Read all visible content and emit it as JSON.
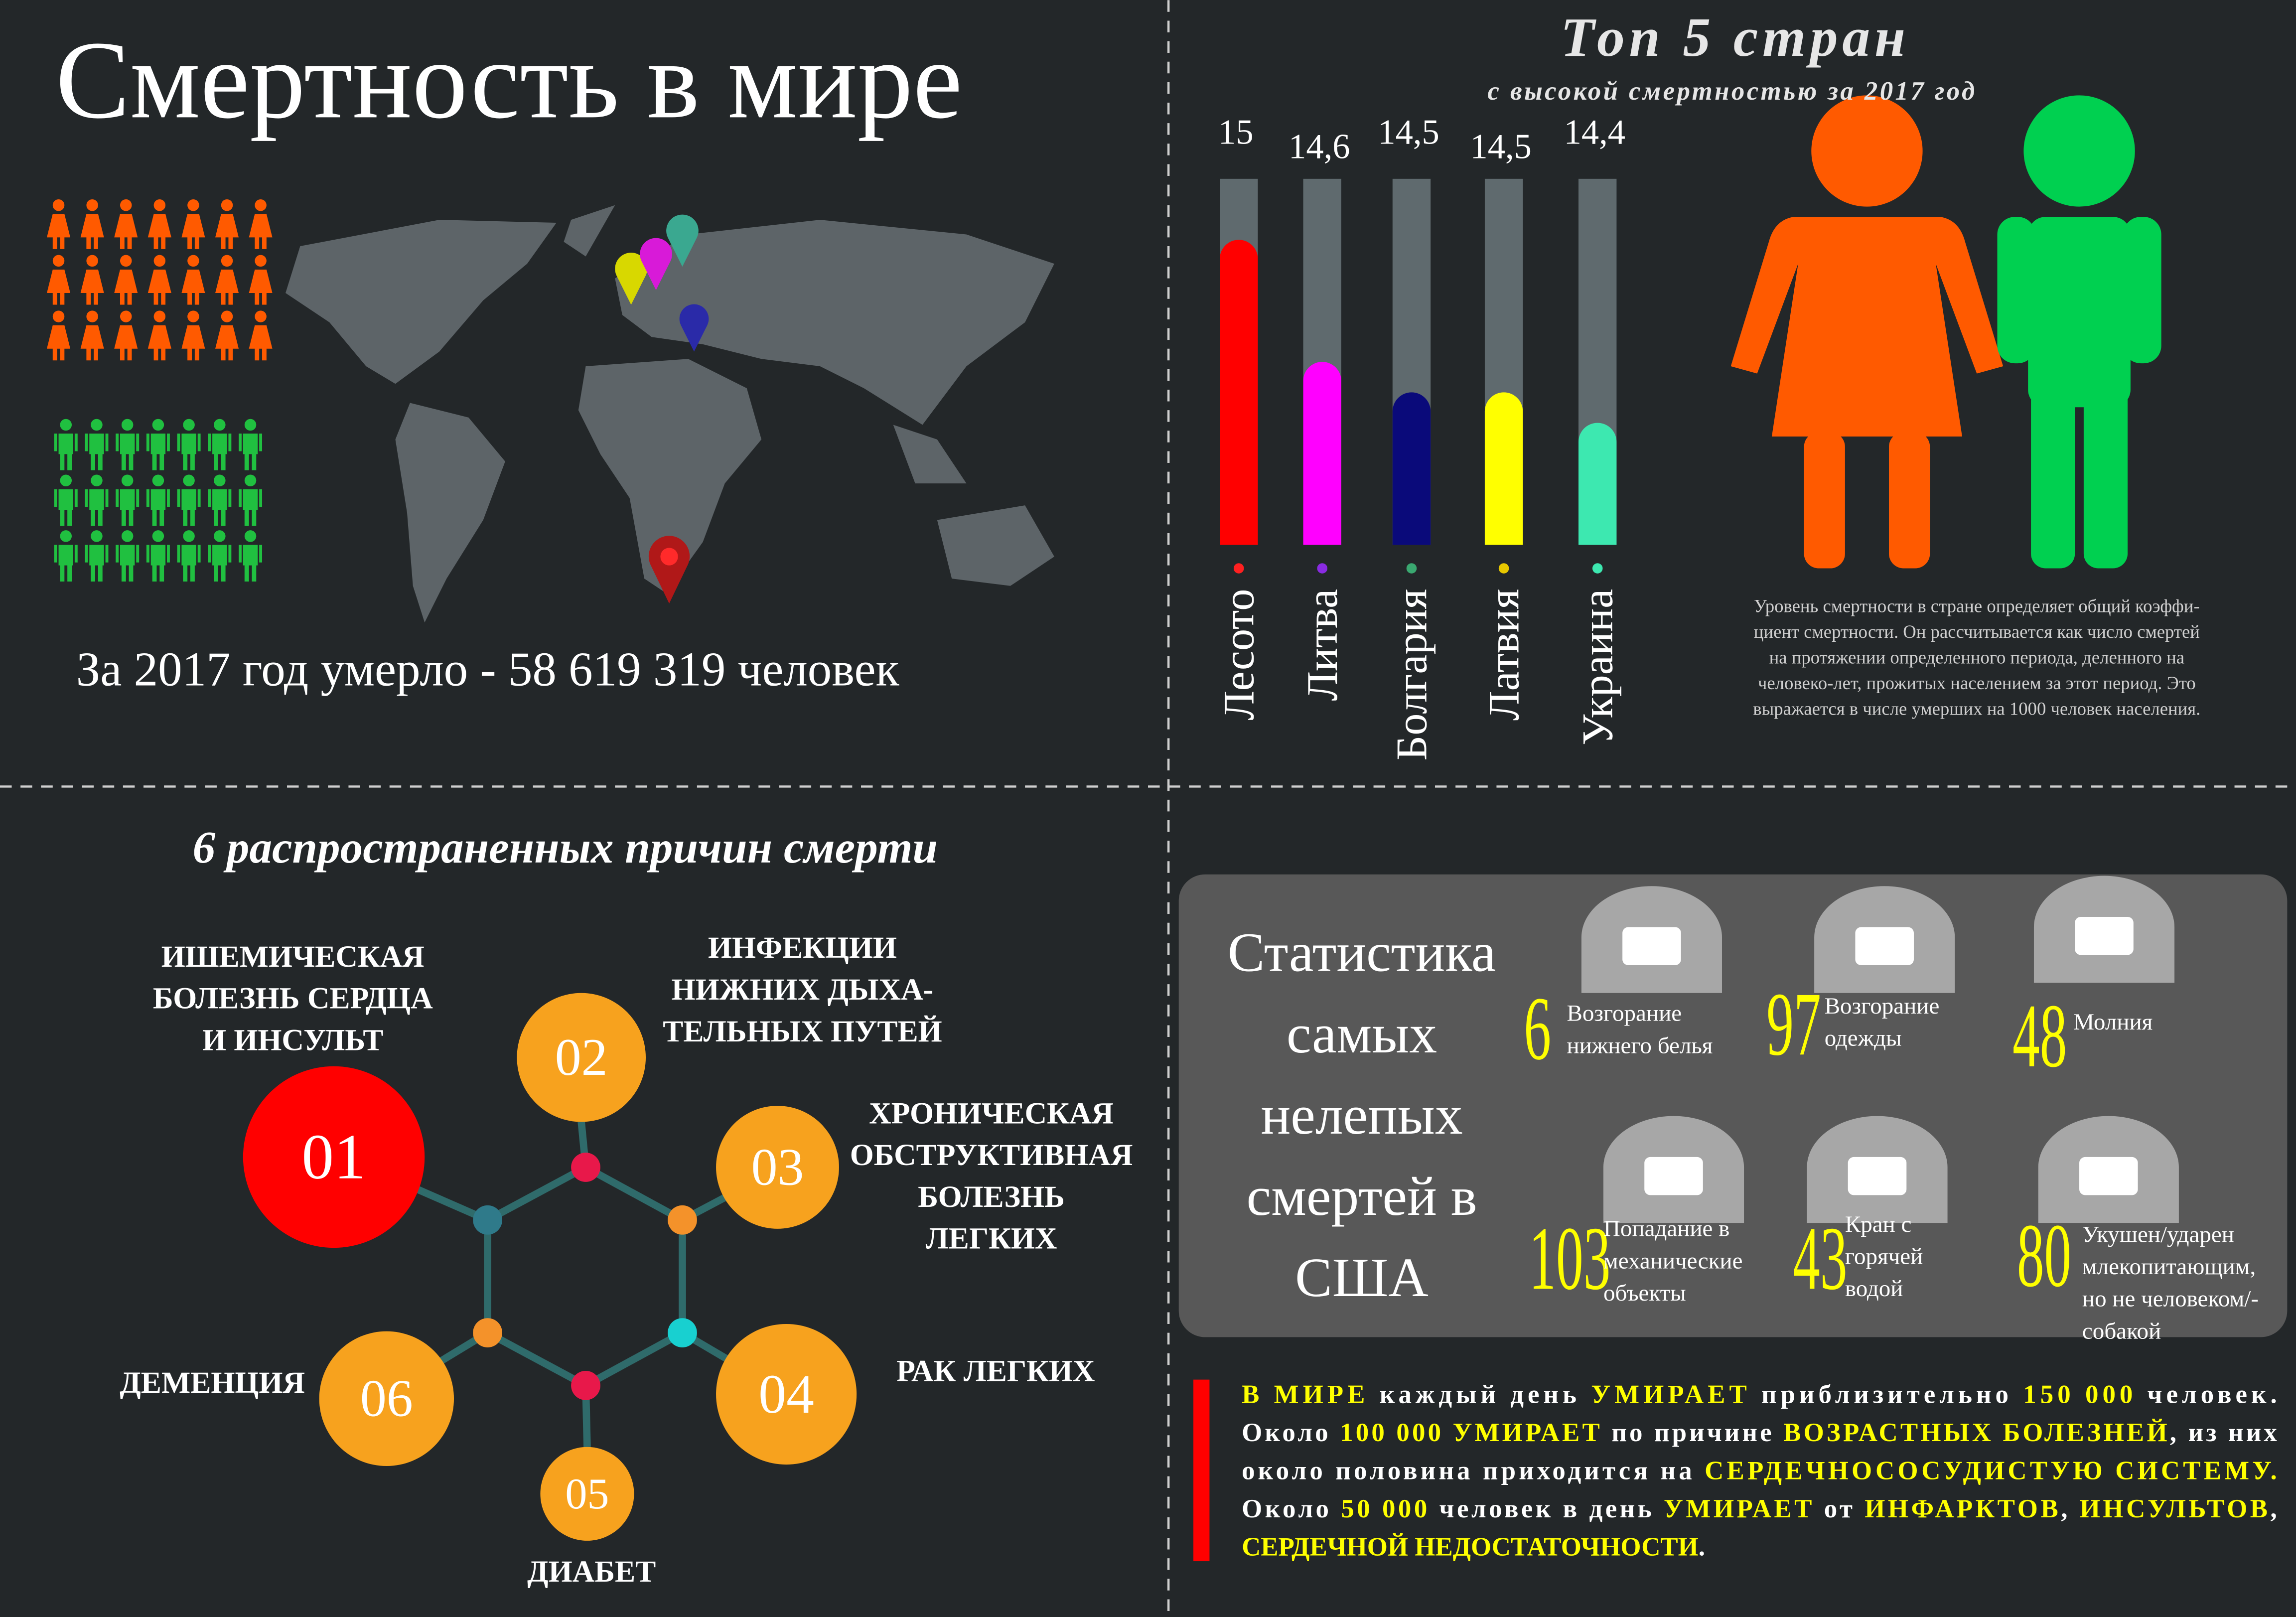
{
  "title": "Смертность в мире",
  "world_deaths": "За 2017 год умерло - 58 619 319 человек",
  "chart_data": {
    "type": "bar",
    "title": "Топ 5 стран",
    "subtitle": "с высокой смертностью за 2017 год",
    "categories": [
      "Лесото",
      "Литва",
      "Болгария",
      "Латвия",
      "Украина"
    ],
    "values": [
      15,
      14.6,
      14.5,
      14.5,
      14.4
    ],
    "value_labels": [
      "15",
      "14,6",
      "14,5",
      "14,5",
      "14,4"
    ],
    "colors": [
      "#ff0000",
      "#ff00ff",
      "#0a0a7a",
      "#ffff00",
      "#3de8b0"
    ],
    "dot_colors": [
      "#ff2020",
      "#8a2be2",
      "#3aa870",
      "#e8c800",
      "#3de8b0"
    ],
    "track_color": "#5f6a6e",
    "ylim": [
      14,
      15.2
    ]
  },
  "explanation": [
    "Уровень смертности в стране определяет общий коэффи-",
    "циент смертности. Он рассчитывается как число смертей",
    "на протяжении определенного периода, деленного на",
    "человеко-лет, прожитых населением за этот период. Это",
    "выражается в числе умерших на 1000 человек населения."
  ],
  "causes": {
    "title": "6 распространенных причин смерти",
    "items": [
      {
        "number": "01",
        "label": [
          "ИШЕМИЧЕСКАЯ",
          "БОЛЕЗНЬ СЕРДЦА",
          "И ИНСУЛЬТ"
        ]
      },
      {
        "number": "02",
        "label": [
          "ИНФЕКЦИИ",
          "НИЖНИХ ДЫХА-",
          "ТЕЛЬНЫХ ПУТЕЙ"
        ]
      },
      {
        "number": "03",
        "label": [
          "ХРОНИЧЕСКАЯ",
          "ОБСТРУКТИВНАЯ",
          "БОЛЕЗНЬ",
          "ЛЕГКИХ"
        ]
      },
      {
        "number": "04",
        "label": [
          "РАК ЛЕГКИХ"
        ]
      },
      {
        "number": "05",
        "label": [
          "ДИАБЕТ"
        ]
      },
      {
        "number": "06",
        "label": [
          "ДЕМЕНЦИЯ"
        ]
      }
    ]
  },
  "usa": {
    "title": [
      "Статистика",
      "самых",
      "нелепых",
      "смертей в",
      "США"
    ],
    "items": [
      {
        "number": "6",
        "label": [
          "Возгорание",
          "нижнего белья"
        ]
      },
      {
        "number": "97",
        "label": [
          "Возгорание",
          "одежды"
        ]
      },
      {
        "number": "48",
        "label": [
          "Молния"
        ]
      },
      {
        "number": "103",
        "label": [
          "Попадание в",
          "механические",
          "объекты"
        ]
      },
      {
        "number": "43",
        "label": [
          "Кран с",
          "горячей",
          "водой"
        ]
      },
      {
        "number": "80",
        "label": [
          "Укушен/ударен",
          "млекопитающим,",
          "но не человеком/-",
          "собакой"
        ]
      }
    ]
  },
  "facts": [
    [
      {
        "text": "В МИРЕ",
        "color": "#ffff00"
      },
      {
        "text": " каждый день ",
        "color": "#ffffff"
      },
      {
        "text": "УМИРАЕТ",
        "color": "#ffff00"
      },
      {
        "text": " приблизительно ",
        "color": "#ffffff"
      },
      {
        "text": "150 000",
        "color": "#ffff00"
      },
      {
        "text": " человек.",
        "color": "#ffffff"
      }
    ],
    [
      {
        "text": "Около ",
        "color": "#ffffff"
      },
      {
        "text": "100 000 УМИРАЕТ",
        "color": "#ffff00"
      },
      {
        "text": " по причине ",
        "color": "#ffffff"
      },
      {
        "text": "ВОЗРАСТНЫХ БОЛЕЗНЕЙ",
        "color": "#ffff00"
      },
      {
        "text": ", из них",
        "color": "#ffffff"
      }
    ],
    [
      {
        "text": "около половина приходится на ",
        "color": "#ffffff"
      },
      {
        "text": "СЕРДЕЧНОСОСУДИСТУЮ СИСТЕМУ.",
        "color": "#ffff00"
      }
    ],
    [
      {
        "text": "Около ",
        "color": "#ffffff"
      },
      {
        "text": "50 000",
        "color": "#ffff00"
      },
      {
        "text": " человек в день ",
        "color": "#ffffff"
      },
      {
        "text": "УМИРАЕТ",
        "color": "#ffff00"
      },
      {
        "text": " от ",
        "color": "#ffffff"
      },
      {
        "text": "ИНФАРКТОВ",
        "color": "#ffff00"
      },
      {
        "text": ", ",
        "color": "#ffffff"
      },
      {
        "text": "ИНСУЛЬТОВ",
        "color": "#ffff00"
      },
      {
        "text": ",",
        "color": "#ffffff"
      }
    ],
    [
      {
        "text": "СЕРДЕЧНОЙ НЕДОСТАТОЧНОСТИ",
        "color": "#ffff00"
      },
      {
        "text": ".",
        "color": "#ffffff"
      }
    ]
  ]
}
